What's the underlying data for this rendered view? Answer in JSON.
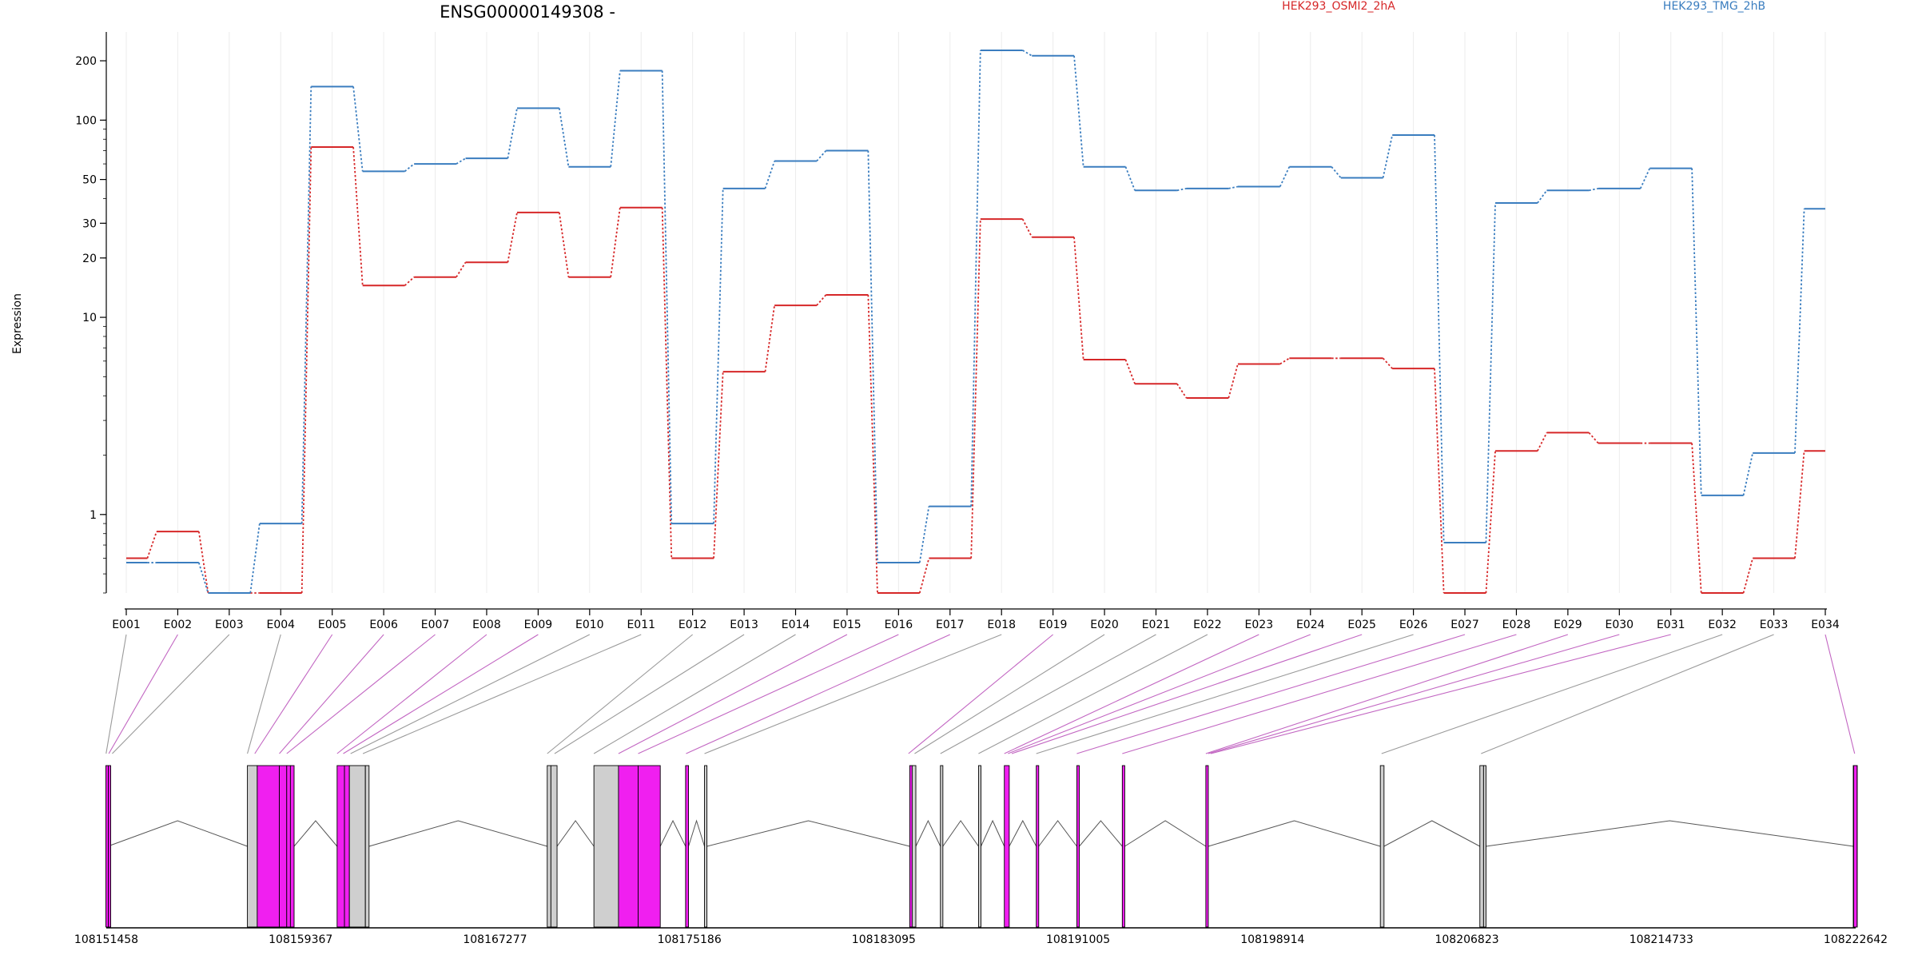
{
  "chart_data": {
    "type": "line",
    "title": "ENSG00000149308 -",
    "ylabel": "Expression",
    "yscale": "log",
    "ylim": [
      0.4,
      280
    ],
    "yticks": [
      1,
      10,
      20,
      30,
      50,
      100,
      200
    ],
    "ytick_labels": [
      "1",
      "10",
      "20",
      "30",
      "50",
      "100",
      "200"
    ],
    "grid": "vertical",
    "legend": "top",
    "colors": {
      "red": "#d62728",
      "blue": "#3a7dbf",
      "pink": "#f01ff0",
      "gray": "#cfcfcf"
    },
    "categories": [
      "E001",
      "E002",
      "E003",
      "E004",
      "E005",
      "E006",
      "E007",
      "E008",
      "E009",
      "E010",
      "E011",
      "E012",
      "E013",
      "E014",
      "E015",
      "E016",
      "E017",
      "E018",
      "E019",
      "E020",
      "E021",
      "E022",
      "E023",
      "E024",
      "E025",
      "E026",
      "E027",
      "E028",
      "E029",
      "E030",
      "E031",
      "E032",
      "E033",
      "E034"
    ],
    "series": [
      {
        "name": "HEK293_OSMI2_2hA",
        "color": "#d62728",
        "values": [
          0.6,
          0.82,
          0.4,
          0.4,
          73,
          14.5,
          16,
          19,
          34,
          16,
          36,
          0.6,
          5.3,
          11.5,
          13,
          0.4,
          0.6,
          31.5,
          25.5,
          6.1,
          4.6,
          3.9,
          5.8,
          6.2,
          6.2,
          5.5,
          0.4,
          2.1,
          2.6,
          2.3,
          2.3,
          0.4,
          0.6,
          2.1
        ]
      },
      {
        "name": "HEK293_TMG_2hB",
        "color": "#3a7dbf",
        "values": [
          0.57,
          0.57,
          0.4,
          0.9,
          148,
          55,
          60,
          64,
          115,
          58,
          178,
          0.9,
          45,
          62,
          70,
          0.57,
          1.1,
          226,
          212,
          58,
          44,
          45,
          46,
          58,
          51,
          84,
          0.72,
          38,
          44,
          45,
          57,
          1.25,
          2.05,
          35.5
        ]
      }
    ],
    "gene_axis": {
      "tick_labels": [
        "108151458",
        "108159367",
        "108167277",
        "108175186",
        "108183095",
        "108191005",
        "108198914",
        "108206823",
        "108214733",
        "108222642"
      ],
      "range": [
        108151458,
        108222642
      ]
    },
    "exons": [
      {
        "id": "E001",
        "start": 108151440,
        "end": 108151520,
        "highlight": true
      },
      {
        "id": "E002",
        "start": 108151540,
        "end": 108151600,
        "highlight": true
      },
      {
        "id": "E003",
        "start": 108157200,
        "end": 108157600,
        "highlight": false
      },
      {
        "id": "E004",
        "start": 108157600,
        "end": 108158500,
        "highlight": true
      },
      {
        "id": "E005",
        "start": 108158500,
        "end": 108158800,
        "highlight": true
      },
      {
        "id": "E006",
        "start": 108158800,
        "end": 108158950,
        "highlight": true
      },
      {
        "id": "E007",
        "start": 108158950,
        "end": 108159100,
        "highlight": true
      },
      {
        "id": "E008",
        "start": 108160850,
        "end": 108161150,
        "highlight": true
      },
      {
        "id": "E009",
        "start": 108161150,
        "end": 108161350,
        "highlight": true
      },
      {
        "id": "E010",
        "start": 108161350,
        "end": 108162000,
        "highlight": false
      },
      {
        "id": "E011",
        "start": 108162000,
        "end": 108162150,
        "highlight": false
      },
      {
        "id": "E012",
        "start": 108169400,
        "end": 108169550,
        "highlight": false
      },
      {
        "id": "E013",
        "start": 108169550,
        "end": 108169800,
        "highlight": false
      },
      {
        "id": "E014",
        "start": 108171300,
        "end": 108172300,
        "highlight": false
      },
      {
        "id": "E015",
        "start": 108172300,
        "end": 108173100,
        "highlight": true
      },
      {
        "id": "E016",
        "start": 108173100,
        "end": 108174000,
        "highlight": true
      },
      {
        "id": "E017",
        "start": 108175030,
        "end": 108175150,
        "highlight": true
      },
      {
        "id": "E018",
        "start": 108175800,
        "end": 108175900,
        "highlight": false
      },
      {
        "id": "E019",
        "start": 108184150,
        "end": 108184250,
        "highlight": true
      },
      {
        "id": "E020",
        "start": 108184250,
        "end": 108184400,
        "highlight": false
      },
      {
        "id": "E021",
        "start": 108185400,
        "end": 108185500,
        "highlight": false
      },
      {
        "id": "E022",
        "start": 108186950,
        "end": 108187050,
        "highlight": false
      },
      {
        "id": "E023",
        "start": 108188000,
        "end": 108188200,
        "highlight": true
      },
      {
        "id": "E024",
        "start": 108189300,
        "end": 108189400,
        "highlight": true
      },
      {
        "id": "E025",
        "start": 108190950,
        "end": 108191050,
        "highlight": true
      },
      {
        "id": "E026",
        "start": 108192800,
        "end": 108192900,
        "highlight": true
      },
      {
        "id": "E027",
        "start": 108196200,
        "end": 108196300,
        "highlight": true
      },
      {
        "id": "E028",
        "start": 108203300,
        "end": 108203450,
        "highlight": false
      },
      {
        "id": "E029",
        "start": 108207350,
        "end": 108207500,
        "highlight": false
      },
      {
        "id": "E030",
        "start": 108207500,
        "end": 108207600,
        "highlight": false
      },
      {
        "id": "E031",
        "start": 108222550,
        "end": 108222700,
        "highlight": true
      },
      {
        "id": "E032",
        "start": 108222550,
        "end": 108222700,
        "highlight": true
      },
      {
        "id": "E033",
        "start": 108222550,
        "end": 108222700,
        "highlight": true
      },
      {
        "id": "E034",
        "start": 108222560,
        "end": 108222700,
        "highlight": true
      }
    ],
    "exon_connectors": [
      {
        "label": "E001",
        "genomic": 108151450,
        "highlight": false
      },
      {
        "label": "E002",
        "genomic": 108151560,
        "highlight": true
      },
      {
        "label": "E003",
        "genomic": 108151700,
        "highlight": false
      },
      {
        "label": "E004",
        "genomic": 108157200,
        "highlight": false
      },
      {
        "label": "E005",
        "genomic": 108157500,
        "highlight": true
      },
      {
        "label": "E006",
        "genomic": 108158500,
        "highlight": true
      },
      {
        "label": "E007",
        "genomic": 108158800,
        "highlight": true
      },
      {
        "label": "E008",
        "genomic": 108160850,
        "highlight": true
      },
      {
        "label": "E009",
        "genomic": 108161100,
        "highlight": true
      },
      {
        "label": "E010",
        "genomic": 108161400,
        "highlight": false
      },
      {
        "label": "E011",
        "genomic": 108161900,
        "highlight": false
      },
      {
        "label": "E012",
        "genomic": 108169400,
        "highlight": false
      },
      {
        "label": "E013",
        "genomic": 108169700,
        "highlight": false
      },
      {
        "label": "E014",
        "genomic": 108171300,
        "highlight": false
      },
      {
        "label": "E015",
        "genomic": 108172300,
        "highlight": true
      },
      {
        "label": "E016",
        "genomic": 108173100,
        "highlight": true
      },
      {
        "label": "E017",
        "genomic": 108175050,
        "highlight": true
      },
      {
        "label": "E018",
        "genomic": 108175800,
        "highlight": false
      },
      {
        "label": "E019",
        "genomic": 108184100,
        "highlight": true
      },
      {
        "label": "E020",
        "genomic": 108184350,
        "highlight": false
      },
      {
        "label": "E021",
        "genomic": 108185400,
        "highlight": false
      },
      {
        "label": "E022",
        "genomic": 108186950,
        "highlight": false
      },
      {
        "label": "E023",
        "genomic": 108188000,
        "highlight": true
      },
      {
        "label": "E024",
        "genomic": 108188150,
        "highlight": true
      },
      {
        "label": "E025",
        "genomic": 108188300,
        "highlight": true
      },
      {
        "label": "E026",
        "genomic": 108189300,
        "highlight": false
      },
      {
        "label": "E027",
        "genomic": 108190950,
        "highlight": true
      },
      {
        "label": "E028",
        "genomic": 108192800,
        "highlight": true
      },
      {
        "label": "E029",
        "genomic": 108196200,
        "highlight": true
      },
      {
        "label": "E030",
        "genomic": 108196300,
        "highlight": true
      },
      {
        "label": "E031",
        "genomic": 108196400,
        "highlight": true
      },
      {
        "label": "E032",
        "genomic": 108203350,
        "highlight": false
      },
      {
        "label": "E033",
        "genomic": 108207400,
        "highlight": false
      },
      {
        "label": "E034",
        "genomic": 108222600,
        "highlight": true
      }
    ],
    "introns": [
      [
        108151520,
        108157200
      ],
      [
        108159100,
        108160850
      ],
      [
        108162150,
        108169400
      ],
      [
        108169800,
        108171300
      ],
      [
        108174000,
        108175030
      ],
      [
        108175150,
        108175800
      ],
      [
        108175900,
        108184150
      ],
      [
        108184400,
        108185400
      ],
      [
        108185500,
        108186950
      ],
      [
        108187050,
        108188000
      ],
      [
        108188200,
        108189300
      ],
      [
        108189400,
        108190950
      ],
      [
        108191050,
        108192800
      ],
      [
        108192900,
        108196200
      ],
      [
        108196300,
        108203300
      ],
      [
        108203450,
        108207350
      ],
      [
        108207600,
        108222550
      ]
    ]
  }
}
